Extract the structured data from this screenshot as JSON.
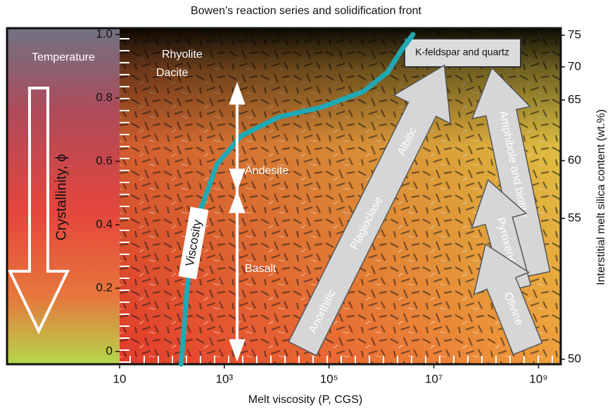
{
  "chart_data": {
    "type": "line",
    "title": "Bowen’s reaction series and solidification front",
    "x_label": "Melt viscosity (P, CGS)",
    "y_label": "Crystallinity, ϕ",
    "y2_label": "Interstitial melt silica content (wt.%)",
    "x_log": true,
    "xlim": [
      10,
      2500000000
    ],
    "xticks": [
      10,
      {
        "value": 1000,
        "label": "10³"
      },
      {
        "value": 100000,
        "label": "10⁵"
      },
      {
        "value": 10000000,
        "label": "10⁷"
      },
      {
        "value": 1000000000,
        "label": "10⁹"
      }
    ],
    "ylim": [
      -0.04,
      1.02
    ],
    "yticks": [
      0,
      0.2,
      0.4,
      0.6,
      0.8,
      {
        "value": 1,
        "label": "1.0"
      }
    ],
    "y2ticks": [
      50,
      55,
      60,
      65,
      70,
      75
    ],
    "color": "#1fa9b4",
    "x": [
      150,
      200,
      340,
      720,
      2100,
      11000,
      70000,
      450000,
      1300000,
      2400000,
      4000000
    ],
    "values": [
      -0.04,
      0.22,
      0.44,
      0.59,
      0.68,
      0.74,
      0.77,
      0.82,
      0.88,
      0.95,
      1.0
    ],
    "annotations": {
      "temperature": "Temperature",
      "rhyolite": "Rhyolite",
      "dacite": "Dacite",
      "andesite": "Andesite",
      "basalt": "Basalt",
      "viscosity": "Viscosity",
      "kfeldspar": "K-feldspar and quartz",
      "anorthitic": "Anorthitic",
      "plagioclase": "Plagioclase",
      "albitic": "Albitic",
      "amphibole": "Amphibole and biotite",
      "pyroxene": "Pyroxene",
      "olivine": "Olivine"
    }
  }
}
